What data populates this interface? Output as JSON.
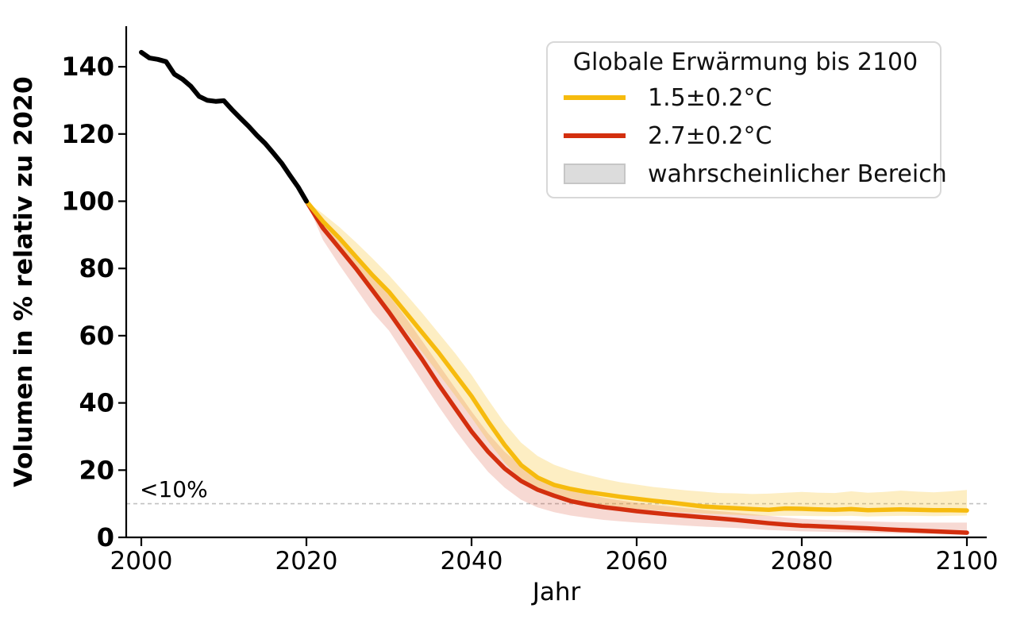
{
  "chart_data": {
    "type": "line",
    "title": "",
    "xlabel": "Jahr",
    "ylabel": "Volumen in % relativ zu 2020",
    "xlim": [
      1998,
      2103
    ],
    "ylim": [
      0,
      152
    ],
    "xticks": [
      2000,
      2020,
      2040,
      2060,
      2080,
      2100
    ],
    "yticks": [
      0,
      20,
      40,
      60,
      80,
      100,
      120,
      140
    ],
    "grid": false,
    "axis_color": "#000000",
    "threshold": {
      "value": 10,
      "label": "<10%",
      "label_color": "#a8a8a8",
      "line_color": "#c2c2c2"
    },
    "legend": {
      "title": "Globale Erwärmung bis 2100",
      "position": "upper right",
      "entries": [
        {
          "label": "1.5±0.2°C",
          "type": "line",
          "color": "#f6bb0e"
        },
        {
          "label": "2.7±0.2°C",
          "type": "line",
          "color": "#d32f0e"
        },
        {
          "label": "wahrscheinlicher Bereich",
          "type": "patch",
          "color": "#dcdcdc"
        }
      ]
    },
    "series": [
      {
        "id": "history",
        "color": "#000000",
        "width": 6,
        "x": [
          2000,
          2001,
          2002,
          2003,
          2004,
          2005,
          2006,
          2007,
          2008,
          2009,
          2010,
          2011,
          2012,
          2013,
          2014,
          2015,
          2016,
          2017,
          2018,
          2019,
          2020
        ],
        "y": [
          144.3,
          142.6,
          142.2,
          141.5,
          137.8,
          136.3,
          134.2,
          131.2,
          130.0,
          129.7,
          129.9,
          127.2,
          124.7,
          122.3,
          119.6,
          117.2,
          114.3,
          111.3,
          107.7,
          104.2,
          100.0
        ]
      },
      {
        "id": "warming_1_5",
        "color": "#f6bb0e",
        "width": 5.5,
        "band_fill": "rgba(246,187,14,0.25)",
        "x": [
          2020,
          2022,
          2024,
          2026,
          2028,
          2030,
          2032,
          2034,
          2036,
          2038,
          2040,
          2042,
          2044,
          2046,
          2048,
          2050,
          2052,
          2054,
          2056,
          2058,
          2060,
          2062,
          2064,
          2066,
          2068,
          2070,
          2072,
          2074,
          2076,
          2078,
          2080,
          2082,
          2084,
          2086,
          2088,
          2090,
          2092,
          2094,
          2096,
          2098,
          2100
        ],
        "y": [
          100,
          94.0,
          89.0,
          83.5,
          78.0,
          73.0,
          67.0,
          61.0,
          55.0,
          48.5,
          42.0,
          34.5,
          27.5,
          21.5,
          17.8,
          15.6,
          14.4,
          13.5,
          12.8,
          12.1,
          11.5,
          10.9,
          10.4,
          9.8,
          9.2,
          8.9,
          8.7,
          8.4,
          8.2,
          8.6,
          8.5,
          8.3,
          8.2,
          8.4,
          8.1,
          8.2,
          8.3,
          8.2,
          8.1,
          8.1,
          8.0
        ],
        "hi": [
          100,
          96.3,
          92.3,
          87.8,
          83.0,
          78.0,
          72.5,
          66.8,
          60.8,
          54.8,
          48.3,
          41.0,
          34.0,
          28.2,
          24.2,
          21.6,
          19.9,
          18.6,
          17.4,
          16.4,
          15.7,
          15.0,
          14.5,
          14.0,
          13.6,
          13.2,
          13.1,
          12.9,
          13.0,
          13.3,
          13.5,
          13.3,
          13.2,
          13.7,
          13.3,
          13.5,
          13.9,
          13.6,
          13.4,
          13.7,
          14.1
        ],
        "lo": [
          100,
          91.6,
          85.7,
          79.6,
          73.5,
          68.0,
          61.5,
          55.2,
          48.7,
          42.2,
          35.6,
          28.6,
          22.3,
          17.0,
          13.6,
          11.8,
          10.8,
          10.0,
          9.4,
          8.9,
          8.5,
          8.1,
          7.8,
          7.4,
          7.1,
          6.9,
          6.7,
          6.5,
          6.4,
          6.4,
          6.4,
          6.3,
          6.3,
          6.4,
          6.2,
          6.3,
          6.4,
          6.4,
          6.3,
          6.4,
          6.5
        ]
      },
      {
        "id": "warming_2_7",
        "color": "#d32f0e",
        "width": 5.5,
        "band_fill": "rgba(211,47,9,0.18)",
        "x": [
          2020,
          2022,
          2024,
          2026,
          2028,
          2030,
          2032,
          2034,
          2036,
          2038,
          2040,
          2042,
          2044,
          2046,
          2048,
          2050,
          2052,
          2054,
          2056,
          2058,
          2060,
          2062,
          2064,
          2066,
          2068,
          2070,
          2072,
          2074,
          2076,
          2078,
          2080,
          2082,
          2084,
          2086,
          2088,
          2090,
          2092,
          2094,
          2096,
          2098,
          2100
        ],
        "y": [
          100,
          92.0,
          86.0,
          80.0,
          73.5,
          67.0,
          60.0,
          53.0,
          45.5,
          38.5,
          31.5,
          25.5,
          20.5,
          16.8,
          14.2,
          12.4,
          10.8,
          9.8,
          9.0,
          8.4,
          7.8,
          7.3,
          6.8,
          6.4,
          6.0,
          5.6,
          5.2,
          4.7,
          4.2,
          3.8,
          3.5,
          3.3,
          3.1,
          2.9,
          2.7,
          2.4,
          2.2,
          2.0,
          1.8,
          1.6,
          1.4
        ],
        "hi": [
          100,
          94.2,
          88.8,
          83.2,
          77.5,
          72.0,
          65.5,
          58.5,
          51.5,
          44.5,
          37.5,
          31.0,
          25.5,
          21.3,
          18.3,
          16.0,
          14.2,
          12.9,
          11.8,
          11.0,
          10.3,
          9.7,
          9.2,
          8.7,
          8.2,
          7.8,
          7.4,
          6.9,
          6.4,
          5.9,
          5.5,
          5.3,
          5.1,
          4.9,
          4.8,
          4.6,
          4.5,
          4.4,
          4.4,
          4.4,
          4.4
        ],
        "lo": [
          100,
          88.5,
          81.0,
          74.0,
          67.0,
          61.5,
          54.0,
          46.5,
          39.0,
          32.0,
          25.5,
          19.5,
          14.8,
          11.2,
          8.9,
          7.5,
          6.5,
          5.8,
          5.2,
          4.8,
          4.4,
          4.1,
          3.8,
          3.5,
          3.2,
          3.0,
          2.8,
          2.5,
          2.2,
          2.0,
          1.8,
          1.7,
          1.6,
          1.5,
          1.4,
          1.3,
          1.2,
          1.1,
          1.0,
          0.9,
          0.8
        ]
      }
    ]
  }
}
